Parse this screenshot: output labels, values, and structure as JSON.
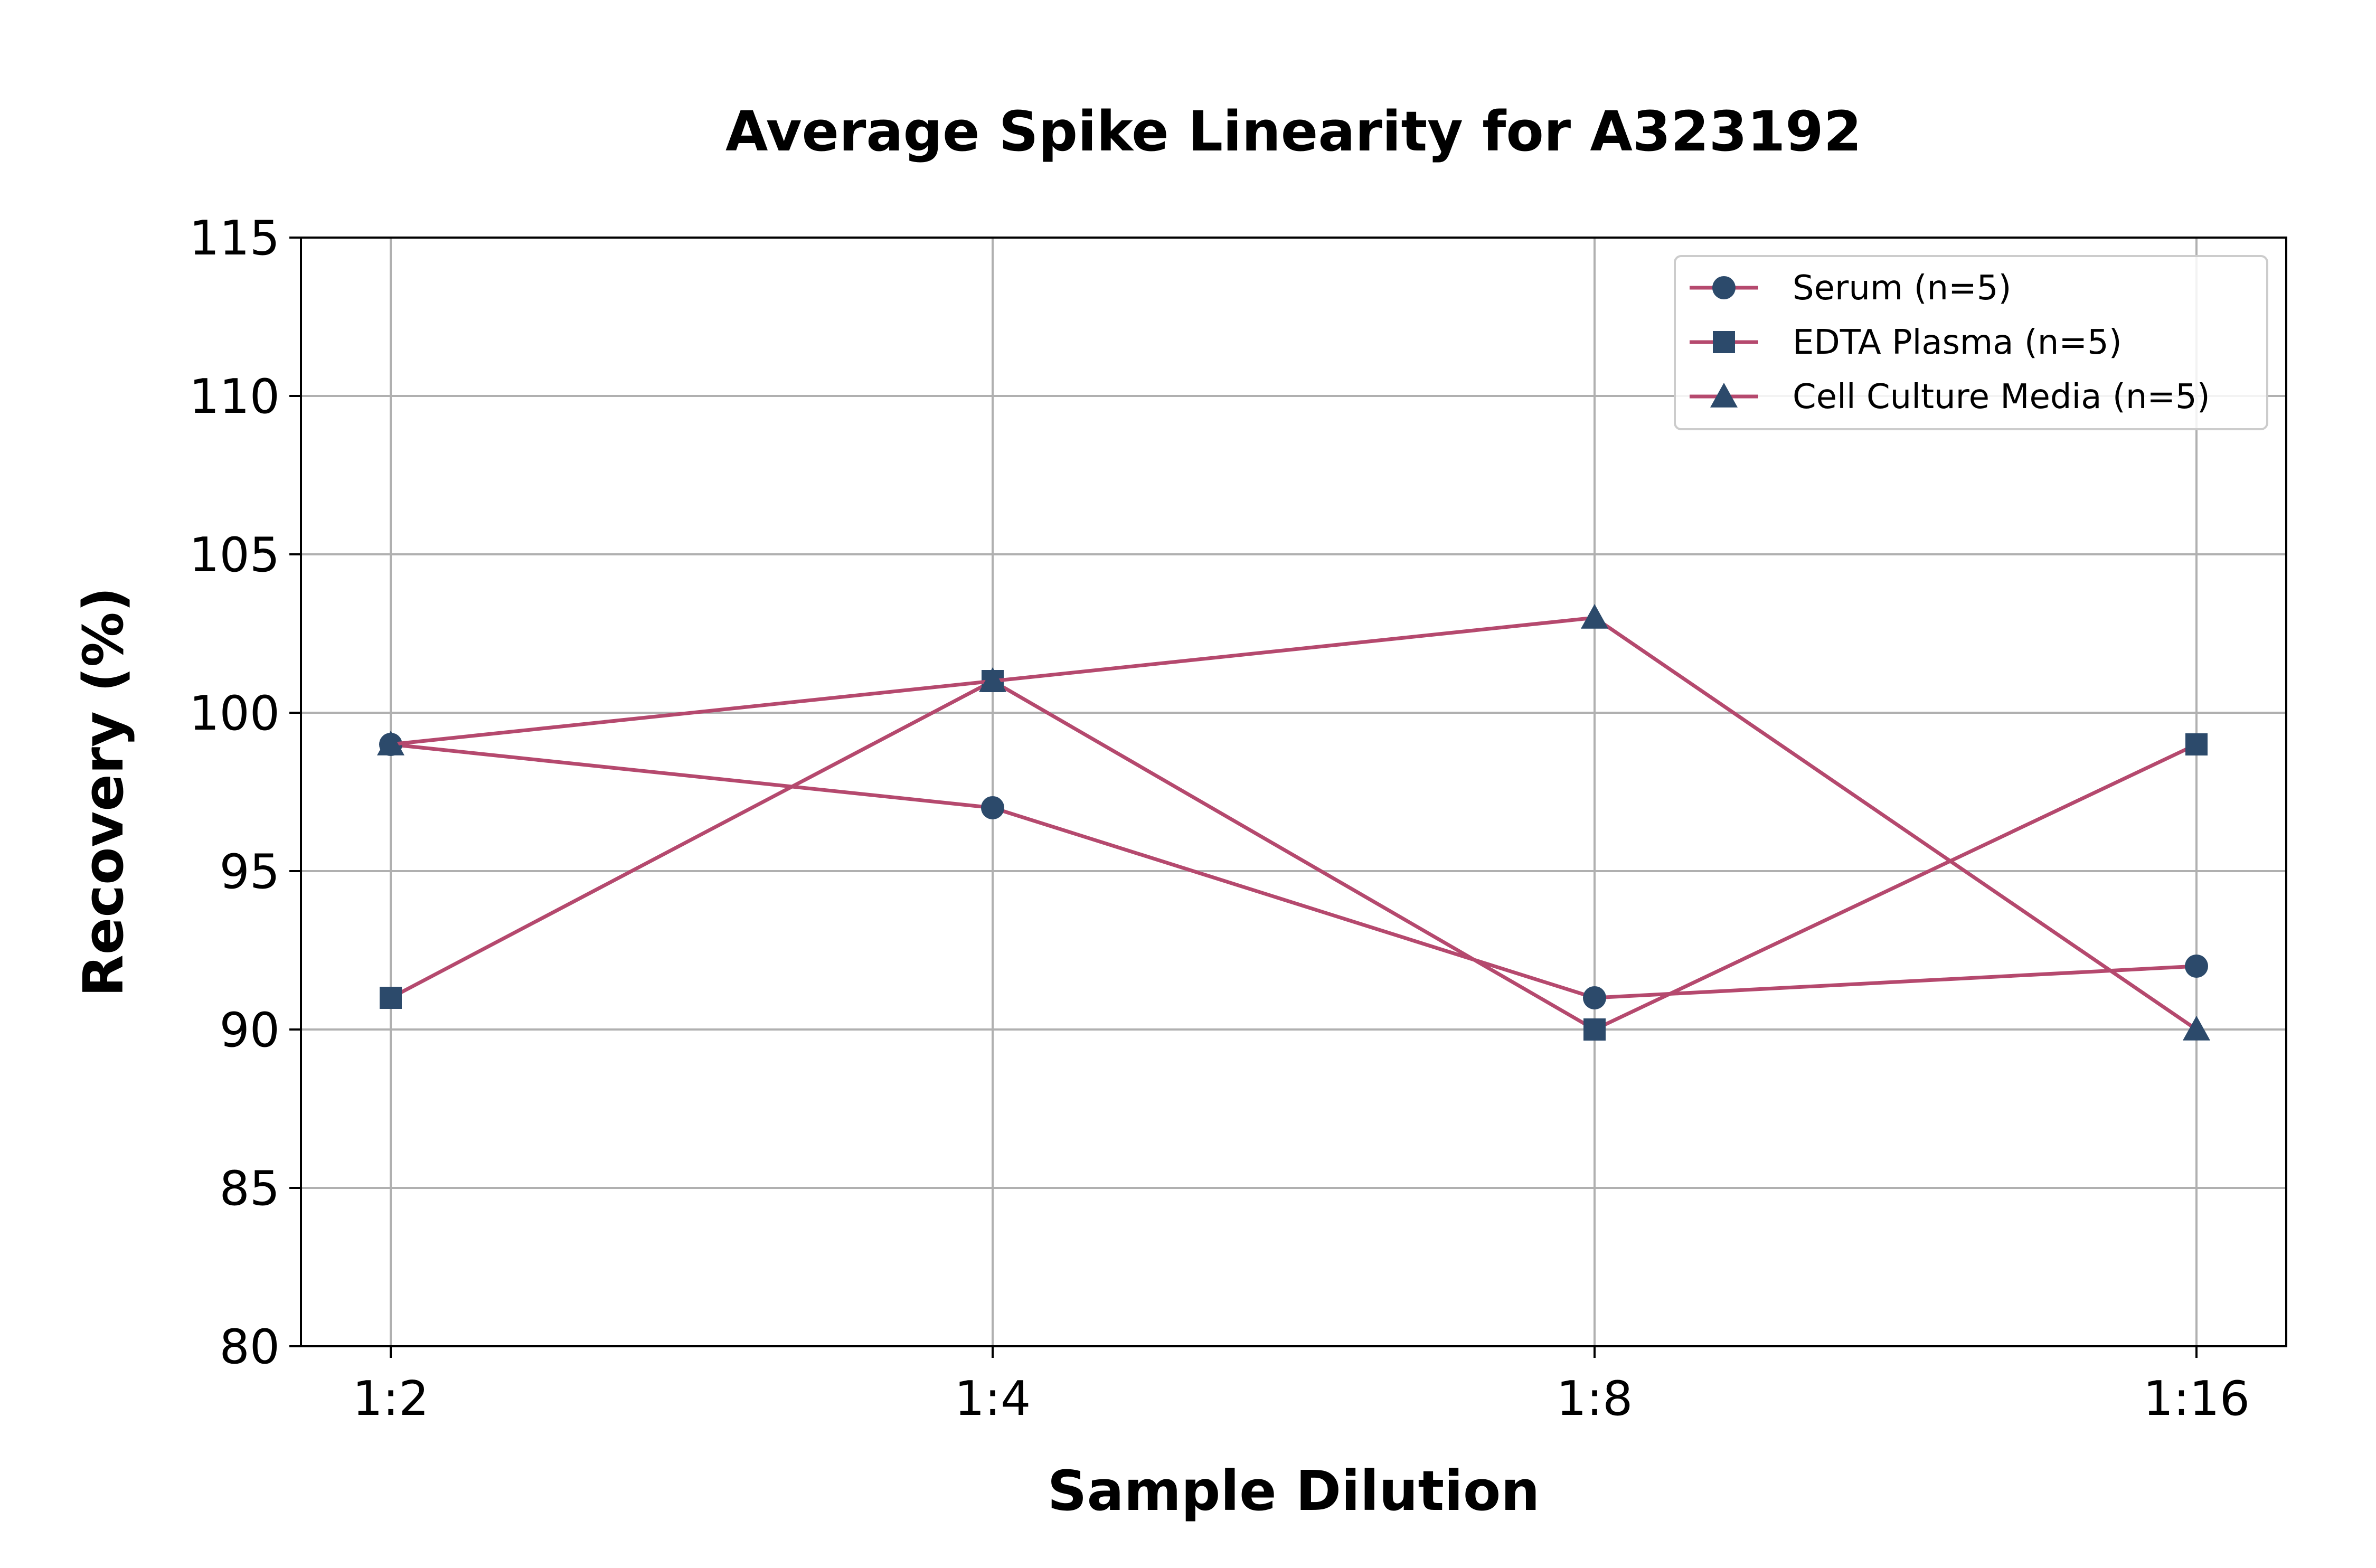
{
  "chart_data": {
    "type": "line",
    "title": "Average Spike Linearity for A323192",
    "xlabel": "Sample Dilution",
    "ylabel": "Recovery (%)",
    "categories": [
      "1:2",
      "1:4",
      "1:8",
      "1:16"
    ],
    "ylim": [
      80,
      115
    ],
    "yticks": [
      80,
      85,
      90,
      95,
      100,
      105,
      110,
      115
    ],
    "grid": true,
    "legend_position": "top-right",
    "line_color": "#b5496e",
    "marker_color": "#2c4a6b",
    "series": [
      {
        "name": "Serum (n=5)",
        "marker": "circle",
        "values": [
          99,
          97,
          91,
          92
        ]
      },
      {
        "name": "EDTA Plasma (n=5)",
        "marker": "square",
        "values": [
          91,
          101,
          90,
          99
        ]
      },
      {
        "name": "Cell Culture Media (n=5)",
        "marker": "triangle",
        "values": [
          99,
          101,
          103,
          90
        ]
      }
    ]
  }
}
